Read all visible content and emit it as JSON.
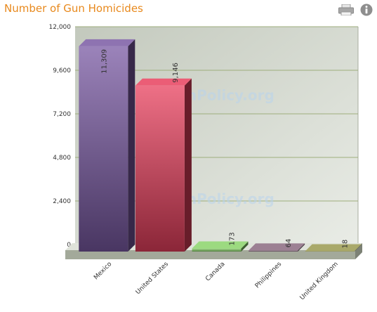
{
  "chart_data": {
    "type": "bar",
    "title": "Number of Gun Homicides",
    "categories": [
      "Mexico",
      "United States",
      "Canada",
      "Philippines",
      "United Kingdom"
    ],
    "values": [
      11309,
      9146,
      173,
      64,
      18
    ],
    "value_labels": [
      "11,309",
      "9,146",
      "173",
      "64",
      "18"
    ],
    "ylim": [
      0,
      12000
    ],
    "yticks": [
      0,
      2400,
      4800,
      7200,
      9600,
      12000
    ],
    "ytick_labels": [
      "0",
      "2,400",
      "4,800",
      "7,200",
      "9,600",
      "12,000"
    ],
    "grid": true,
    "style": "3d",
    "colors": [
      "#7a5aa3",
      "#e8405e",
      "#8ad46a",
      "#8a6a80",
      "#9a9a50"
    ],
    "watermark": "GunPolicy.org"
  },
  "toolbar": {
    "print_icon": "printer-icon",
    "info_icon": "info-icon"
  }
}
